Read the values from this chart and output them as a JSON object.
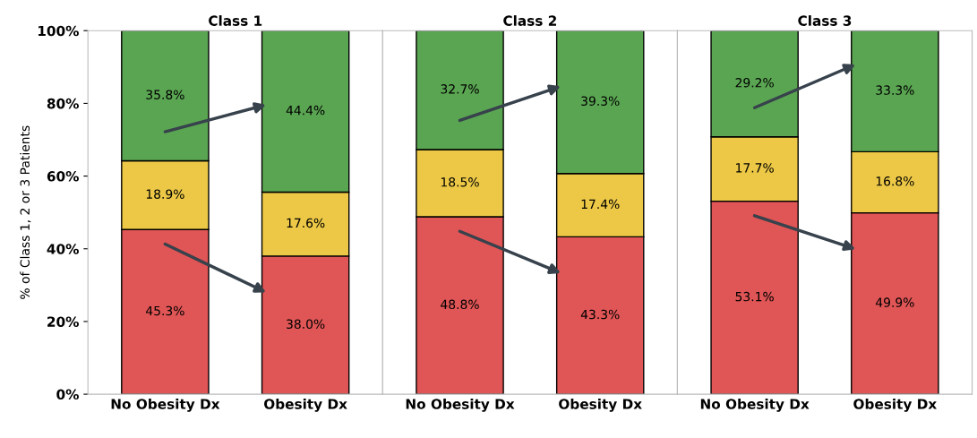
{
  "chart_data": [
    {
      "type": "bar",
      "stacked": true,
      "title": "Class 1",
      "ylabel": "% of Class 1, 2 or 3 Patients",
      "categories": [
        "No Obesity Dx",
        "Obesity Dx"
      ],
      "ylim": [
        0,
        100
      ],
      "yticks": [
        {
          "value": 0,
          "label": "0%"
        },
        {
          "value": 20,
          "label": "20%"
        },
        {
          "value": 40,
          "label": "40%"
        },
        {
          "value": 60,
          "label": "60%"
        },
        {
          "value": 80,
          "label": "80%"
        },
        {
          "value": 100,
          "label": "100%"
        }
      ],
      "series": [
        {
          "color": "#e05555",
          "values": [
            45.3,
            38.0
          ],
          "value_labels": [
            "45.3%",
            "38.0%"
          ]
        },
        {
          "color": "#ecc846",
          "values": [
            18.9,
            17.6
          ],
          "value_labels": [
            "18.9%",
            "17.6%"
          ]
        },
        {
          "color": "#5aa552",
          "values": [
            35.8,
            44.4
          ],
          "value_labels": [
            "35.8%",
            "44.4%"
          ]
        }
      ]
    },
    {
      "type": "bar",
      "stacked": true,
      "title": "Class 2",
      "tick_labels": "x",
      "categories": [
        "No Obesity Dx",
        "Obesity Dx"
      ],
      "ylim": [
        0,
        100
      ],
      "series": [
        {
          "color": "#e05555",
          "values": [
            48.8,
            43.3
          ],
          "value_labels": [
            "48.8%",
            "43.3%"
          ]
        },
        {
          "color": "#ecc846",
          "values": [
            18.5,
            17.4
          ],
          "value_labels": [
            "18.5%",
            "17.4%"
          ]
        },
        {
          "color": "#5aa552",
          "values": [
            32.7,
            39.3
          ],
          "value_labels": [
            "32.7%",
            "39.3%"
          ]
        }
      ]
    },
    {
      "type": "bar",
      "stacked": true,
      "title": "Class 3",
      "tick_labels": "x",
      "categories": [
        "No Obesity Dx",
        "Obesity Dx"
      ],
      "ylim": [
        0,
        100
      ],
      "series": [
        {
          "color": "#e05555",
          "values": [
            53.1,
            49.9
          ],
          "value_labels": [
            "53.1%",
            "49.9%"
          ]
        },
        {
          "color": "#ecc846",
          "values": [
            17.7,
            16.8
          ],
          "value_labels": [
            "17.7%",
            "16.8%"
          ]
        },
        {
          "color": "#5aa552",
          "values": [
            29.2,
            33.3
          ],
          "value_labels": [
            "29.2%",
            "33.3%"
          ]
        }
      ]
    }
  ]
}
